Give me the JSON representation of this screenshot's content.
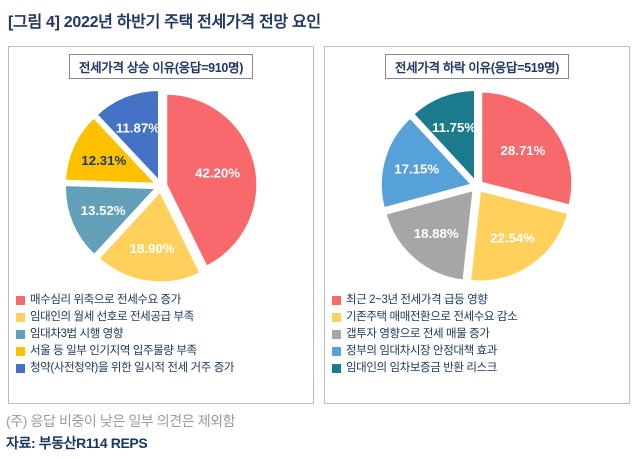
{
  "page": {
    "title": "[그림 4] 2022년 하반기 주택 전세가격 전망 요인",
    "note": "(주) 응답 비중이 낮은 일부 의견은 제외함",
    "source": "자료: 부동산R114 REPS"
  },
  "chart_data": [
    {
      "type": "pie",
      "title": "전세가격 상승 이유(응답=910명)",
      "labels": [
        "매수심리 위축으로 전세수요 증가",
        "임대인의 월세 선호로 전세공급 부족",
        "임대차3법 시행 영향",
        "서울 등 일부 인기지역 입주물량 부족",
        "청약(사전청약)을 위한 일시적 전세 거주 증가"
      ],
      "values": [
        42.2,
        18.9,
        13.52,
        12.31,
        11.87
      ],
      "value_labels": [
        "42.20%",
        "18.90%",
        "13.52%",
        "12.31%",
        "11.87%"
      ],
      "colors": [
        "#F8696B",
        "#FFD05C",
        "#62A0BA",
        "#FFC000",
        "#4472C4"
      ],
      "label_colors": [
        "#ffffff",
        "#ffffff",
        "#ffffff",
        "#1F3864",
        "#ffffff"
      ],
      "start_angle_deg": -90,
      "direction": "clockwise",
      "legend_position": "bottom"
    },
    {
      "type": "pie",
      "title": "전세가격 하락 이유(응답=519명)",
      "labels": [
        "최근 2~3년 전세가격 급등 영향",
        "기존주택 매매전환으로 전세수요 감소",
        "갭투자 영향으로 전세 매물 증가",
        "정부의 임대차시장 안정대책 효과",
        "임대인의 임차보증금 반환 리스크"
      ],
      "values": [
        28.71,
        22.54,
        18.88,
        17.15,
        11.75
      ],
      "value_labels": [
        "28.71%",
        "22.54%",
        "18.88%",
        "17.15%",
        "11.75%"
      ],
      "colors": [
        "#F8696B",
        "#FFD05C",
        "#A6A6A6",
        "#56A2D8",
        "#1B7B8C"
      ],
      "label_colors": [
        "#ffffff",
        "#ffffff",
        "#ffffff",
        "#ffffff",
        "#ffffff"
      ],
      "start_angle_deg": -90,
      "direction": "clockwise",
      "legend_position": "bottom"
    }
  ]
}
